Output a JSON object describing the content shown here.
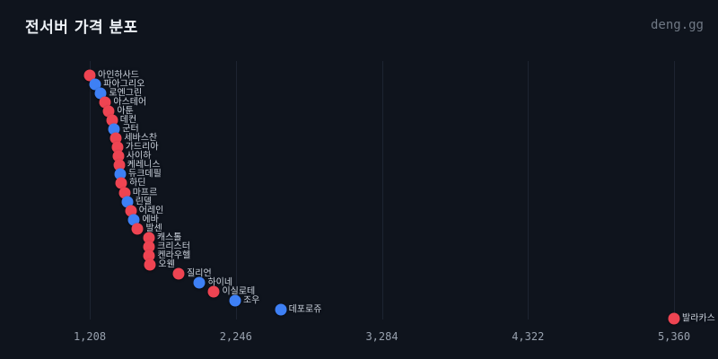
{
  "header": {
    "title": "전서버 가격 분포",
    "brand": "deng.gg"
  },
  "colors": {
    "background": "#0f141d",
    "grid": "#1d2431",
    "red": "#ee4452",
    "blue": "#3e80f5",
    "title_text": "#eef2f7",
    "tick_text": "#98a1ae",
    "label_text": "#ccd3dd"
  },
  "chart_data": {
    "type": "scatter",
    "title": "전서버 가격 분포",
    "xlabel": "",
    "ylabel": "",
    "xlim": [
      1208,
      5360
    ],
    "x_ticks": [
      "1,208",
      "2,246",
      "3,284",
      "4,322",
      "5,360"
    ],
    "x_tick_values": [
      1208,
      2246,
      3284,
      4322,
      5360
    ],
    "grid": "vertical",
    "legend_position": "none",
    "point_order": "sorted ascending by price, top to bottom",
    "points": [
      {
        "label": "아인하사드",
        "value": 1208,
        "color": "red"
      },
      {
        "label": "파아그리오",
        "value": 1248,
        "color": "blue"
      },
      {
        "label": "로엔그린",
        "value": 1287,
        "color": "blue"
      },
      {
        "label": "아스테어",
        "value": 1319,
        "color": "red"
      },
      {
        "label": "아툰",
        "value": 1344,
        "color": "red"
      },
      {
        "label": "데컨",
        "value": 1366,
        "color": "red"
      },
      {
        "label": "군터",
        "value": 1382,
        "color": "blue"
      },
      {
        "label": "세바스찬",
        "value": 1395,
        "color": "red"
      },
      {
        "label": "가드리아",
        "value": 1404,
        "color": "red"
      },
      {
        "label": "사이하",
        "value": 1411,
        "color": "red"
      },
      {
        "label": "케레니스",
        "value": 1417,
        "color": "red"
      },
      {
        "label": "듀크데필",
        "value": 1425,
        "color": "blue"
      },
      {
        "label": "하딘",
        "value": 1432,
        "color": "red"
      },
      {
        "label": "마프르",
        "value": 1455,
        "color": "red"
      },
      {
        "label": "린델",
        "value": 1474,
        "color": "blue"
      },
      {
        "label": "어레인",
        "value": 1500,
        "color": "red"
      },
      {
        "label": "에바",
        "value": 1523,
        "color": "blue"
      },
      {
        "label": "발센",
        "value": 1549,
        "color": "red"
      },
      {
        "label": "캐스톨",
        "value": 1628,
        "color": "red"
      },
      {
        "label": "크리스터",
        "value": 1630,
        "color": "red"
      },
      {
        "label": "켄라우헬",
        "value": 1632,
        "color": "red"
      },
      {
        "label": "오웬",
        "value": 1638,
        "color": "red"
      },
      {
        "label": "질리언",
        "value": 1840,
        "color": "red"
      },
      {
        "label": "하이네",
        "value": 1989,
        "color": "blue"
      },
      {
        "label": "이실로테",
        "value": 2091,
        "color": "red"
      },
      {
        "label": "조우",
        "value": 2241,
        "color": "blue"
      },
      {
        "label": "데포로쥬",
        "value": 2564,
        "color": "blue"
      },
      {
        "label": "발라카스",
        "value": 5360,
        "color": "red"
      }
    ]
  }
}
